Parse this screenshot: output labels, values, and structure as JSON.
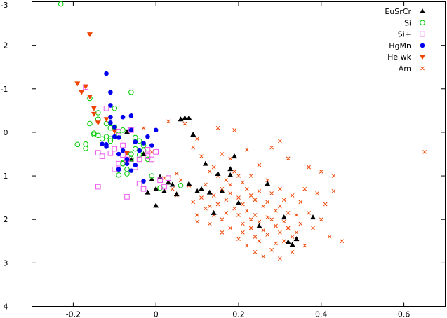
{
  "chart_data": {
    "type": "scatter",
    "title": "",
    "xlabel": "",
    "ylabel": "",
    "xlim": [
      -0.3,
      0.7
    ],
    "ylim": [
      4,
      -3
    ],
    "y_axis_inverted": true,
    "xticks": [
      -0.2,
      0,
      0.2,
      0.4,
      0.6
    ],
    "xtick_labels": [
      "-0.2",
      "0",
      "0.2",
      "0.4",
      "0.6"
    ],
    "yticks": [
      -3,
      -2,
      -1,
      0,
      1,
      2,
      3,
      4
    ],
    "ytick_labels": [
      "-3",
      "-2",
      "-1",
      "0",
      "1",
      "2",
      "3",
      "4"
    ],
    "grid": false,
    "legend_position": "top-right",
    "series": [
      {
        "name": "EuSrCr",
        "marker": "filled-triangle",
        "color": "#000000",
        "points": [
          [
            -0.07,
            -0.01
          ],
          [
            -0.06,
            0.62
          ],
          [
            -0.03,
            0.5
          ],
          [
            -0.02,
            1.38
          ],
          [
            -0.01,
            1.08
          ],
          [
            0,
            1.3
          ],
          [
            0,
            1.68
          ],
          [
            0.01,
            1.02
          ],
          [
            0.02,
            1.35
          ],
          [
            0.03,
            1.15
          ],
          [
            0.04,
            1.2
          ],
          [
            0.05,
            1.42
          ],
          [
            0.06,
            -0.3
          ],
          [
            0.07,
            -0.33
          ],
          [
            0.08,
            -0.33
          ],
          [
            0.08,
            1.18
          ],
          [
            0.09,
            0.05
          ],
          [
            0.1,
            1.35
          ],
          [
            0.11,
            1.3
          ],
          [
            0.12,
            0.72
          ],
          [
            0.13,
            1.38
          ],
          [
            0.14,
            1.85
          ],
          [
            0.15,
            0.95
          ],
          [
            0.16,
            1.35
          ],
          [
            0.18,
            0.98
          ],
          [
            0.18,
            0.84
          ],
          [
            0.19,
            0.55
          ],
          [
            0.2,
            1.62
          ],
          [
            0.25,
            2.15
          ],
          [
            0.27,
            1.18
          ],
          [
            0.31,
            1.95
          ],
          [
            0.32,
            2.52
          ],
          [
            0.33,
            2.58
          ],
          [
            0.34,
            2.45
          ],
          [
            0.38,
            1.95
          ]
        ]
      },
      {
        "name": "Si",
        "marker": "open-circle",
        "color": "#00cc00",
        "points": [
          [
            -0.23,
            -2.95
          ],
          [
            -0.19,
            0.28
          ],
          [
            -0.17,
            0.37
          ],
          [
            -0.16,
            -0.78
          ],
          [
            -0.15,
            0.02
          ],
          [
            -0.14,
            -0.45
          ],
          [
            -0.14,
            0.07
          ],
          [
            -0.13,
            0.15
          ],
          [
            -0.12,
            -0.2
          ],
          [
            -0.12,
            0.1
          ],
          [
            -0.11,
            0.15
          ],
          [
            -0.11,
            0.2
          ],
          [
            -0.1,
            -0.12
          ],
          [
            -0.1,
            -0.55
          ],
          [
            -0.09,
            0.05
          ],
          [
            -0.09,
            0.98
          ],
          [
            -0.08,
            -0.05
          ],
          [
            -0.08,
            0.72
          ],
          [
            -0.07,
            0.85
          ],
          [
            -0.07,
            0.95
          ],
          [
            -0.06,
            -0.92
          ],
          [
            -0.06,
            0.6
          ],
          [
            -0.05,
            0.12
          ],
          [
            -0.05,
            0.38
          ],
          [
            -0.04,
            0.2
          ],
          [
            -0.04,
            0.52
          ],
          [
            -0.03,
            0.3
          ],
          [
            -0.02,
            0.62
          ],
          [
            -0.01,
            1.0
          ],
          [
            0.01,
            1.28
          ],
          [
            0.06,
            1.22
          ],
          [
            -0.16,
            -0.2
          ],
          [
            -0.17,
            0.27
          ],
          [
            -0.15,
            0.05
          ],
          [
            -0.14,
            -0.3
          ],
          [
            -0.11,
            -0.1
          ],
          [
            -0.08,
            0.7
          ],
          [
            -0.06,
            0.5
          ],
          [
            -0.03,
            0.42
          ]
        ]
      },
      {
        "name": "Si+",
        "marker": "open-square",
        "color": "#ee55ee",
        "points": [
          [
            -0.17,
            -1.04
          ],
          [
            -0.14,
            0.47
          ],
          [
            -0.14,
            1.25
          ],
          [
            -0.13,
            0.55
          ],
          [
            -0.12,
            -0.55
          ],
          [
            -0.11,
            0.48
          ],
          [
            -0.1,
            0.85
          ],
          [
            -0.09,
            0.72
          ],
          [
            -0.09,
            -0.02
          ],
          [
            -0.08,
            0.52
          ],
          [
            -0.07,
            0.62
          ],
          [
            -0.07,
            1.48
          ],
          [
            -0.06,
            -0.05
          ],
          [
            -0.05,
            0.8
          ],
          [
            -0.04,
            0.62
          ],
          [
            -0.04,
            1.18
          ],
          [
            -0.03,
            1.3
          ],
          [
            -0.02,
            0.4
          ],
          [
            -0.02,
            0.55
          ],
          [
            -0.01,
            0.62
          ],
          [
            0,
            0.45
          ],
          [
            0.01,
            1.1
          ],
          [
            0.02,
            1.25
          ],
          [
            0.03,
            1.05
          ],
          [
            -0.1,
            0.38
          ],
          [
            -0.08,
            0.3
          ]
        ]
      },
      {
        "name": "HgMn",
        "marker": "filled-circle",
        "color": "#0000ee",
        "points": [
          [
            -0.12,
            -1.35
          ],
          [
            -0.12,
            0.28
          ],
          [
            -0.12,
            0.33
          ],
          [
            -0.11,
            -0.92
          ],
          [
            -0.11,
            -0.62
          ],
          [
            -0.11,
            -0.35
          ],
          [
            -0.11,
            -0.22
          ],
          [
            -0.1,
            -0.12
          ],
          [
            -0.1,
            0.1
          ],
          [
            -0.09,
            0.12
          ],
          [
            -0.09,
            0.5
          ],
          [
            -0.09,
            0.85
          ],
          [
            -0.08,
            -0.35
          ],
          [
            -0.08,
            0.42
          ],
          [
            -0.07,
            0.62
          ],
          [
            -0.07,
            0.72
          ],
          [
            -0.06,
            -0.38
          ],
          [
            -0.06,
            -0.05
          ],
          [
            -0.05,
            0.22
          ],
          [
            -0.05,
            0.75
          ],
          [
            -0.04,
            0.42
          ],
          [
            -0.03,
            0.25
          ],
          [
            -0.03,
            1.12
          ],
          [
            -0.02,
            0.1
          ],
          [
            -0.01,
            0.3
          ],
          [
            0,
            -0.05
          ],
          [
            -0.06,
            0.88
          ],
          [
            -0.13,
            0.27
          ]
        ]
      },
      {
        "name": "He wk",
        "marker": "filled-down-triangle",
        "color": "#ee4400",
        "points": [
          [
            -0.16,
            -2.25
          ],
          [
            -0.19,
            -1.12
          ],
          [
            -0.17,
            -1.05
          ],
          [
            -0.18,
            -0.92
          ],
          [
            -0.16,
            -0.82
          ],
          [
            -0.15,
            -0.55
          ],
          [
            -0.15,
            -0.42
          ],
          [
            -0.14,
            -0.22
          ],
          [
            -0.12,
            -0.3
          ],
          [
            -0.1,
            -0.02
          ],
          [
            -0.07,
            0.48
          ]
        ]
      },
      {
        "name": "Am",
        "marker": "cross",
        "color": "#ee4400",
        "points": [
          [
            -0.03,
            -0.1
          ],
          [
            -0.01,
            0.45
          ],
          [
            0.02,
            1.05
          ],
          [
            0.03,
            -0.25
          ],
          [
            0.04,
            1.3
          ],
          [
            0.05,
            0.95
          ],
          [
            0.05,
            1.45
          ],
          [
            0.06,
            1.1
          ],
          [
            0.07,
            -0.2
          ],
          [
            0.08,
            1.22
          ],
          [
            0.09,
            0.35
          ],
          [
            0.09,
            1.6
          ],
          [
            0.1,
            0.15
          ],
          [
            0.1,
            1.9
          ],
          [
            0.1,
            2.05
          ],
          [
            0.11,
            0.55
          ],
          [
            0.11,
            1.5
          ],
          [
            0.12,
            1.2
          ],
          [
            0.12,
            1.75
          ],
          [
            0.13,
            0.9
          ],
          [
            0.13,
            1.7
          ],
          [
            0.13,
            2.1
          ],
          [
            0.14,
            0.8
          ],
          [
            0.14,
            1.45
          ],
          [
            0.14,
            1.9
          ],
          [
            0.15,
            -0.1
          ],
          [
            0.15,
            1.0
          ],
          [
            0.15,
            1.65
          ],
          [
            0.16,
            0.5
          ],
          [
            0.16,
            1.3
          ],
          [
            0.16,
            2.0
          ],
          [
            0.16,
            2.3
          ],
          [
            0.17,
            1.1
          ],
          [
            0.17,
            1.55
          ],
          [
            0.17,
            1.85
          ],
          [
            0.18,
            0.6
          ],
          [
            0.18,
            1.2
          ],
          [
            0.18,
            1.4
          ],
          [
            0.18,
            2.2
          ],
          [
            0.19,
            -0.05
          ],
          [
            0.19,
            0.9
          ],
          [
            0.19,
            1.75
          ],
          [
            0.2,
            1.0
          ],
          [
            0.2,
            1.5
          ],
          [
            0.2,
            1.9
          ],
          [
            0.2,
            2.45
          ],
          [
            0.21,
            1.15
          ],
          [
            0.21,
            1.65
          ],
          [
            0.21,
            2.1
          ],
          [
            0.21,
            2.3
          ],
          [
            0.22,
            0.4
          ],
          [
            0.22,
            1.3
          ],
          [
            0.22,
            1.8
          ],
          [
            0.22,
            2.6
          ],
          [
            0.23,
            1.0
          ],
          [
            0.23,
            1.45
          ],
          [
            0.23,
            2.0
          ],
          [
            0.23,
            2.2
          ],
          [
            0.24,
            1.55
          ],
          [
            0.24,
            1.9
          ],
          [
            0.24,
            2.4
          ],
          [
            0.24,
            2.75
          ],
          [
            0.25,
            0.75
          ],
          [
            0.25,
            1.35
          ],
          [
            0.25,
            2.05
          ],
          [
            0.25,
            2.5
          ],
          [
            0.26,
            1.7
          ],
          [
            0.26,
            2.25
          ],
          [
            0.26,
            2.85
          ],
          [
            0.27,
            1.1
          ],
          [
            0.27,
            1.6
          ],
          [
            0.27,
            1.95
          ],
          [
            0.27,
            2.35
          ],
          [
            0.28,
            0.35
          ],
          [
            0.28,
            1.4
          ],
          [
            0.28,
            2.0
          ],
          [
            0.28,
            2.7
          ],
          [
            0.29,
            1.8
          ],
          [
            0.29,
            2.15
          ],
          [
            0.29,
            2.55
          ],
          [
            0.3,
            0.2
          ],
          [
            0.3,
            1.3
          ],
          [
            0.3,
            1.7
          ],
          [
            0.3,
            2.3
          ],
          [
            0.3,
            2.9
          ],
          [
            0.31,
            1.55
          ],
          [
            0.31,
            2.05
          ],
          [
            0.31,
            2.5
          ],
          [
            0.32,
            0.6
          ],
          [
            0.32,
            1.85
          ],
          [
            0.32,
            2.2
          ],
          [
            0.33,
            1.45
          ],
          [
            0.33,
            2.4
          ],
          [
            0.33,
            2.75
          ],
          [
            0.34,
            1.9
          ],
          [
            0.34,
            2.3
          ],
          [
            0.35,
            1.6
          ],
          [
            0.35,
            2.1
          ],
          [
            0.36,
            1.3
          ],
          [
            0.36,
            2.6
          ],
          [
            0.37,
            0.8
          ],
          [
            0.37,
            1.85
          ],
          [
            0.38,
            2.2
          ],
          [
            0.39,
            1.4
          ],
          [
            0.4,
            0.9
          ],
          [
            0.4,
            2.0
          ],
          [
            0.41,
            1.65
          ],
          [
            0.42,
            2.4
          ],
          [
            0.43,
            1.0
          ],
          [
            0.43,
            1.35
          ],
          [
            0.45,
            2.5
          ],
          [
            0.65,
            0.45
          ]
        ]
      }
    ]
  }
}
